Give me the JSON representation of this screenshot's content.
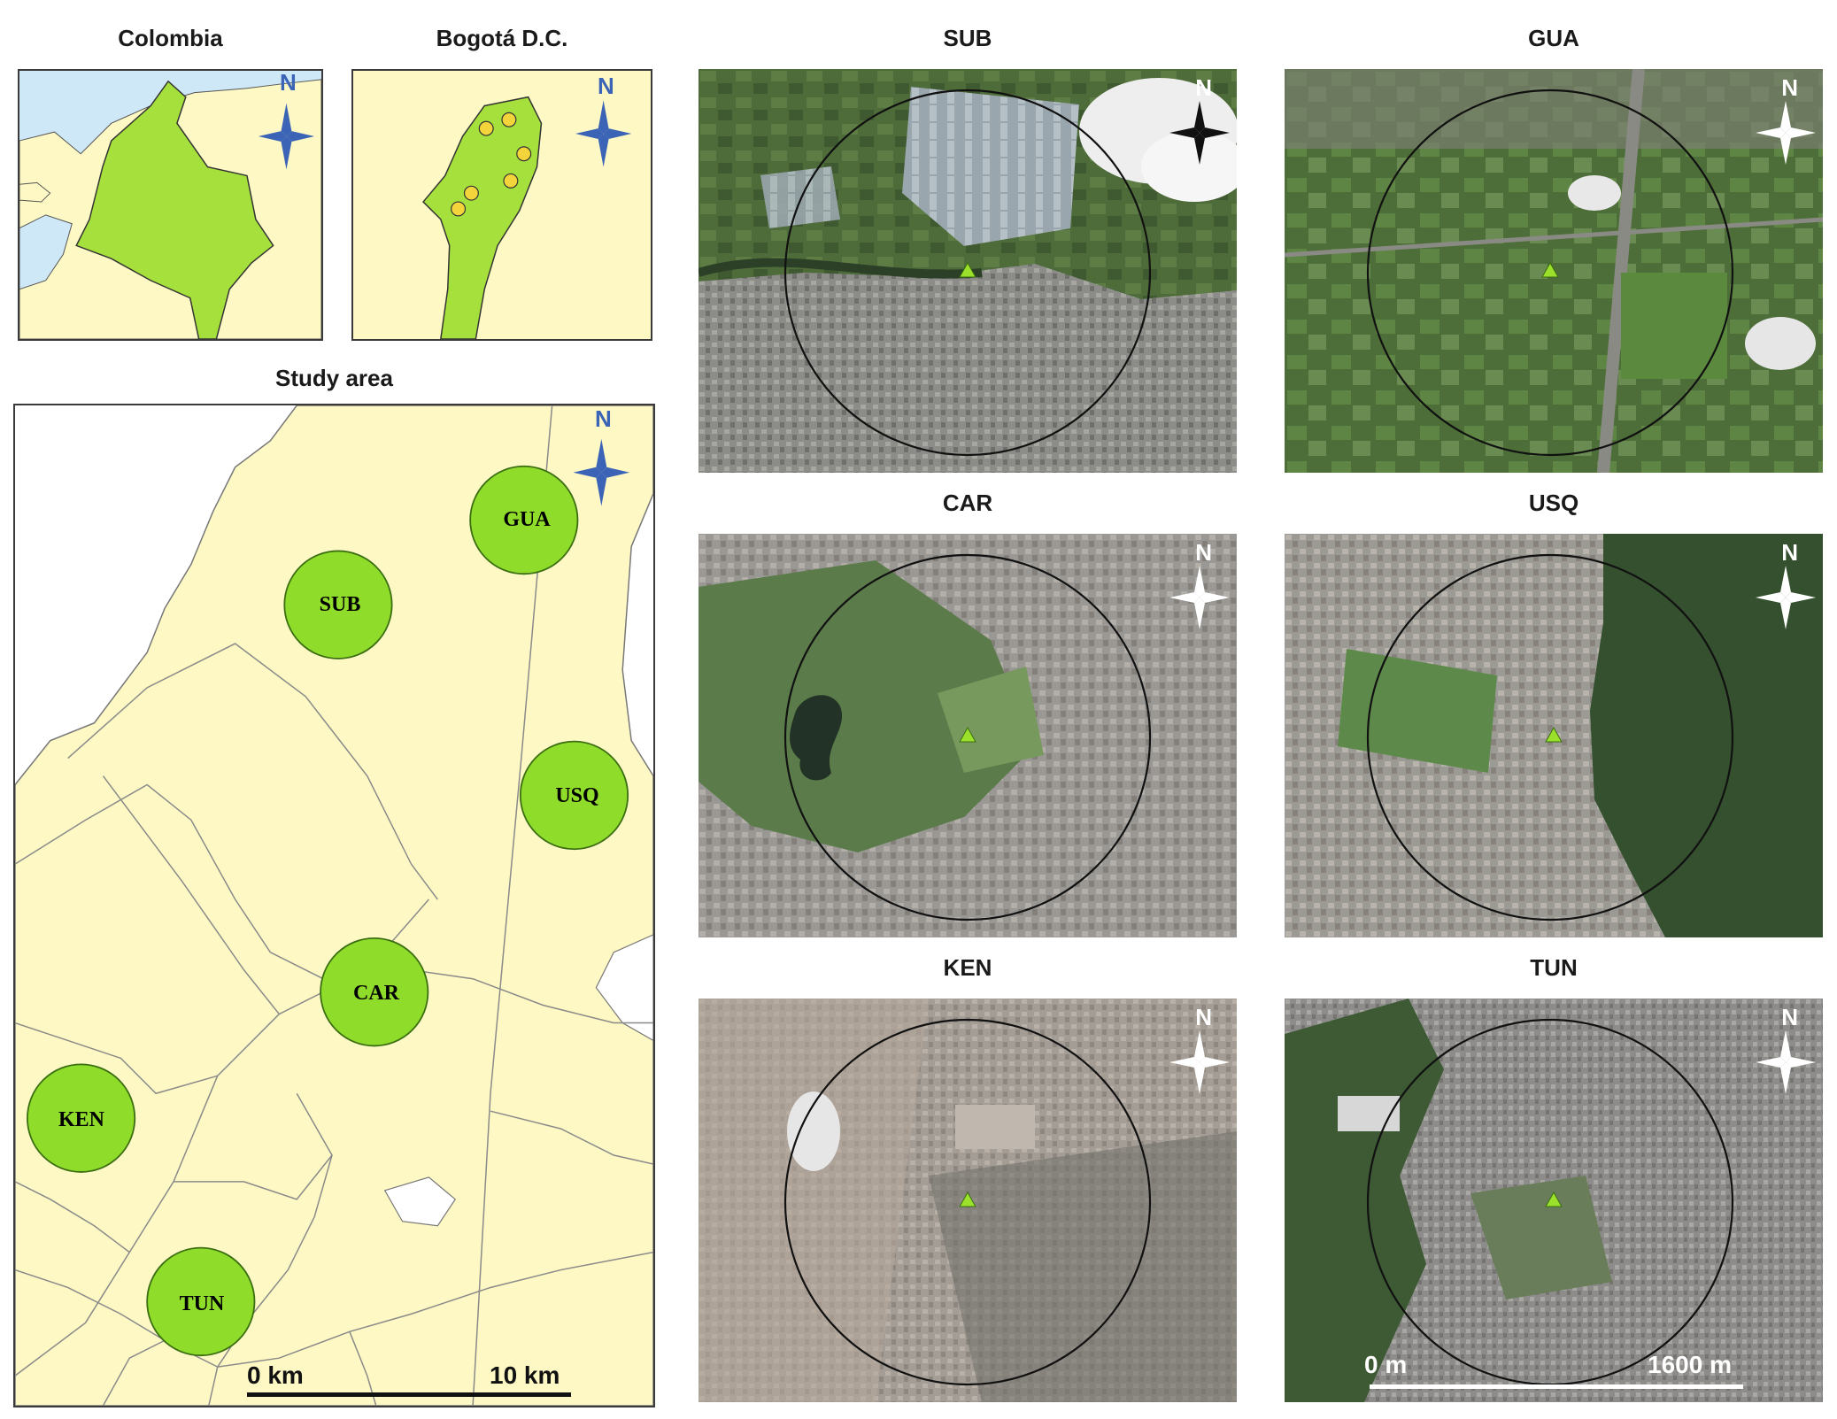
{
  "colors": {
    "land": "#fdf8c4",
    "sea": "#cfe8f7",
    "country": "#a6e03c",
    "site_fill": "#8fdc2a",
    "site_stroke": "#3b6e12",
    "compass_blue": "#3b63b6",
    "dot_yellow": "#f3d43a"
  },
  "inset_colombia": {
    "title": "Colombia",
    "north": "N"
  },
  "inset_bogota": {
    "title": "Bogotá D.C.",
    "north": "N"
  },
  "study_area": {
    "title": "Study area",
    "north": "N",
    "sites": [
      "GUA",
      "SUB",
      "USQ",
      "CAR",
      "KEN",
      "TUN"
    ],
    "scale_start": "0 km",
    "scale_end": "10 km"
  },
  "satellite_panels": [
    {
      "title": "SUB",
      "north": "N",
      "icon": "compass-black"
    },
    {
      "title": "GUA",
      "north": "N",
      "icon": "compass-white"
    },
    {
      "title": "CAR",
      "north": "N",
      "icon": "compass-white"
    },
    {
      "title": "USQ",
      "north": "N",
      "icon": "compass-white"
    },
    {
      "title": "KEN",
      "north": "N",
      "icon": "compass-white"
    },
    {
      "title": "TUN",
      "north": "N",
      "icon": "compass-white",
      "scale_start": "0 m",
      "scale_end": "1600 m"
    }
  ]
}
